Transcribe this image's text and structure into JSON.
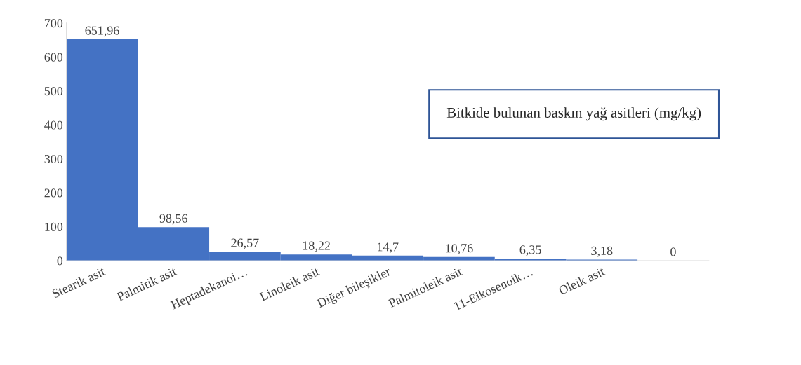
{
  "chart_data": {
    "type": "bar",
    "title": "Bitkide bulunan baskın yağ asitleri (mg/kg)",
    "categories": [
      "Stearik asit",
      "Palmitik asit",
      "Heptadekanoi…",
      "Linoleik asit",
      "Diğer bileşikler",
      "Palmitoleik asit",
      "11-Eikosenoik…",
      "Oleik asit",
      null
    ],
    "values": [
      651.96,
      98.56,
      26.57,
      18.22,
      14.7,
      10.76,
      6.35,
      3.18,
      0
    ],
    "value_labels": [
      "651,96",
      "98,56",
      "26,57",
      "18,22",
      "14,7",
      "10,76",
      "6,35",
      "3,18",
      "0"
    ],
    "color": "#4472c4",
    "ylim": [
      0,
      700
    ],
    "yticks": [
      0,
      100,
      200,
      300,
      400,
      500,
      600,
      700
    ],
    "grid": false,
    "legend": false
  }
}
